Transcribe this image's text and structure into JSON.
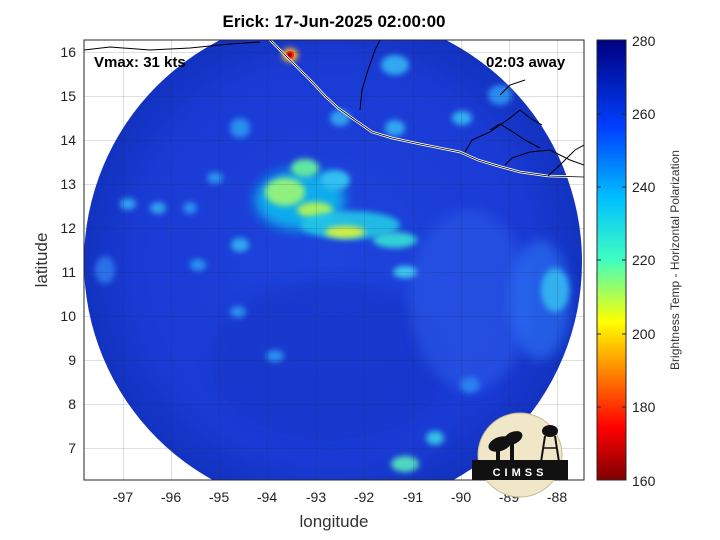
{
  "title": "Erick: 17-Jun-2025 02:00:00",
  "annotations": {
    "vmax": "Vmax: 31 kts",
    "away": "02:03 away"
  },
  "axes": {
    "xlabel": "longitude",
    "ylabel": "latitude",
    "x_range": [
      -97.8,
      -87.4
    ],
    "y_range": [
      6.3,
      16.3
    ],
    "x_ticks": [
      "-97",
      "-96",
      "-95",
      "-94",
      "-93",
      "-92",
      "-91",
      "-90",
      "-89",
      "-88"
    ],
    "y_ticks": [
      "16",
      "15",
      "14",
      "13",
      "12",
      "11",
      "10",
      "9",
      "8",
      "7"
    ],
    "grid": true
  },
  "colorbar": {
    "label": "Brightness Temp - Horizontal Polarization",
    "ticks": [
      "280",
      "260",
      "240",
      "220",
      "200",
      "180",
      "160"
    ],
    "range": [
      160,
      280
    ],
    "colormap": "jet"
  },
  "logo": {
    "text": "CIMSS"
  },
  "colors": {
    "background_sea": "#1a3fd8",
    "disk_edge": "#1030b8",
    "coast": "#ffffff",
    "land_border": "#000000"
  }
}
